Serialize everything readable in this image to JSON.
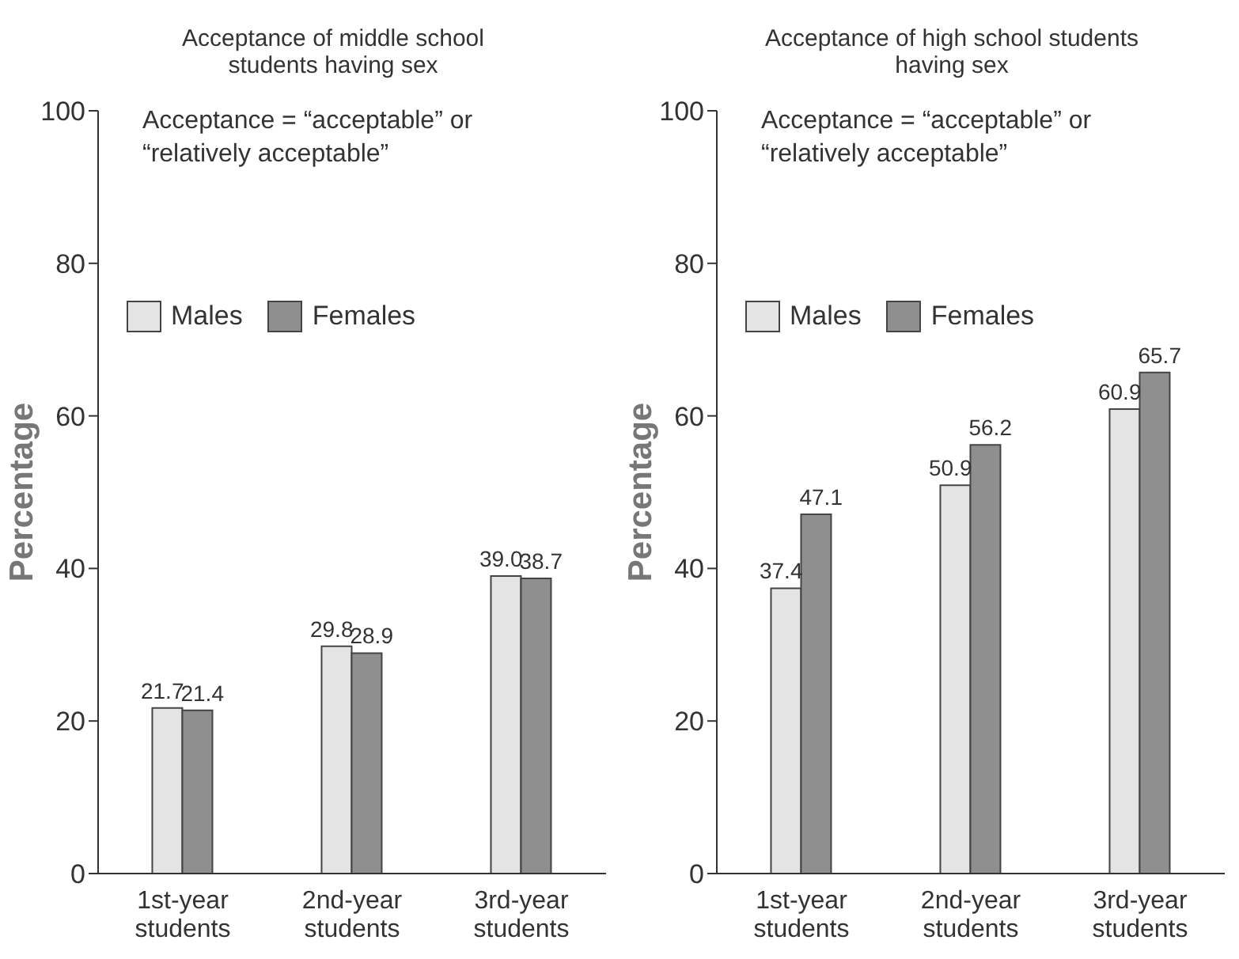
{
  "chart_data": [
    {
      "type": "bar",
      "title": "Acceptance of middle school students having sex",
      "ylabel": "Percentage",
      "categories": [
        "1st-year students",
        "2nd-year students",
        "3rd-year students"
      ],
      "series": [
        {
          "name": "Males",
          "color": "#e4e4e4",
          "values": [
            21.7,
            29.8,
            39.0
          ],
          "value_labels": [
            "21.7",
            "29.8",
            "39.0"
          ]
        },
        {
          "name": "Females",
          "color": "#8f8f8f",
          "values": [
            21.4,
            28.9,
            38.7
          ],
          "value_labels": [
            "21.4",
            "28.9",
            "38.7"
          ]
        }
      ],
      "ylim": [
        0,
        100
      ],
      "yticks": [
        0,
        20,
        40,
        60,
        80,
        100
      ],
      "legend": "top left",
      "annotations": [
        "Acceptance = “acceptable” or “relatively acceptable”"
      ]
    },
    {
      "type": "bar",
      "title": "Acceptance of high school students having sex",
      "ylabel": "Percentage",
      "categories": [
        "1st-year students",
        "2nd-year students",
        "3rd-year students"
      ],
      "series": [
        {
          "name": "Males",
          "color": "#e4e4e4",
          "values": [
            37.4,
            50.9,
            60.9
          ],
          "value_labels": [
            "37.4",
            "50.9",
            "60.9"
          ]
        },
        {
          "name": "Females",
          "color": "#8f8f8f",
          "values": [
            47.1,
            56.2,
            65.7
          ],
          "value_labels": [
            "47.1",
            "56.2",
            "65.7"
          ]
        }
      ],
      "ylim": [
        0,
        100
      ],
      "yticks": [
        0,
        20,
        40,
        60,
        80,
        100
      ],
      "legend": "top left",
      "annotations": [
        "Acceptance = “acceptable” or “relatively acceptable”"
      ]
    }
  ]
}
